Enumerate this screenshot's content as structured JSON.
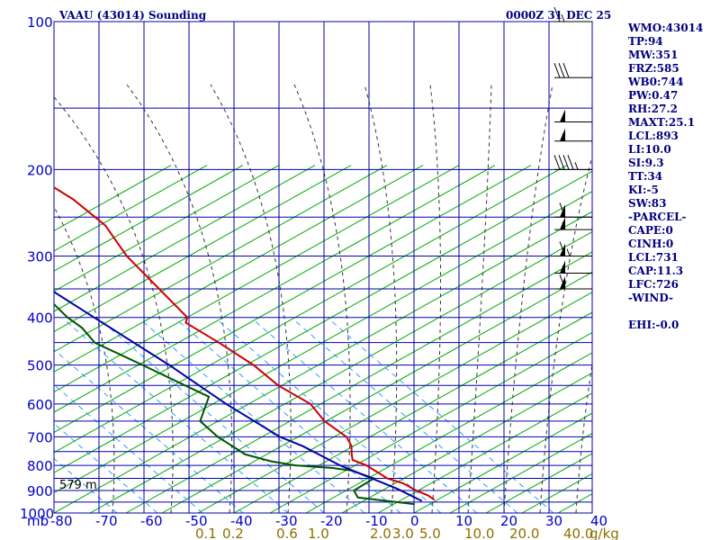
{
  "title": "VAAU (43014) Sounding",
  "time": "0000Z 31 DEC 25",
  "colors": {
    "grid": "#0000aa",
    "dry_adiabat": "#00aa00",
    "moist_adiabat": "#333333",
    "mixing_ratio": "#3399ff",
    "temperature": "#cc0000",
    "dewpoint": "#005500",
    "parcel": "#0000aa",
    "wind_barbs": "#000000"
  },
  "indices": [
    "WMO:43014",
    "TP:94",
    "MW:351",
    "FRZ:585",
    "WB0:744",
    "PW:0.47",
    "RH:27.2",
    "MAXT:25.1",
    "LCL:893",
    "LI:10.0",
    "SI:9.3",
    "TT:34",
    "KI:-5",
    "SW:83",
    "-PARCEL-",
    "CAPE:0",
    "CINH:0",
    "LCL:731",
    "CAP:11.3",
    "LFC:726",
    "-WIND-",
    "",
    "EHI:-0.0"
  ],
  "elevation_label": "579 m",
  "x_unit_label": "mb",
  "mixing_unit_label": "g/kg",
  "chart_data": {
    "type": "line",
    "chart_kind": "skew-T log-P",
    "title": "VAAU (43014) Sounding",
    "subtitle": "0000Z 31 DEC 25",
    "xlabel": "mb",
    "pressure_ticks": [
      "100",
      "200",
      "300",
      "400",
      "500",
      "600",
      "700",
      "800",
      "900",
      "1000"
    ],
    "pressure_lines": [
      100,
      150,
      200,
      250,
      300,
      350,
      400,
      450,
      500,
      550,
      600,
      650,
      700,
      750,
      800,
      850,
      900,
      950,
      1000
    ],
    "temperature_ticks": [
      "-80",
      "-70",
      "-60",
      "-50",
      "-40",
      "-30",
      "-20",
      "-10",
      "0",
      "10",
      "20",
      "30",
      "40"
    ],
    "mixing_ratio_ticks": [
      "0.1",
      "0.2",
      "0.6",
      "1.0",
      "2.0",
      "3.0",
      "5.0",
      "10.0",
      "20.0",
      "40.0"
    ],
    "grid": true,
    "series": [
      {
        "name": "Temperature",
        "points": [
          [
            100,
            -78
          ],
          [
            115,
            -70
          ],
          [
            150,
            -55
          ],
          [
            200,
            -44
          ],
          [
            230,
            -37
          ],
          [
            260,
            -33
          ],
          [
            300,
            -32
          ],
          [
            400,
            -26
          ],
          [
            410,
            -27
          ],
          [
            450,
            -22
          ],
          [
            500,
            -17
          ],
          [
            550,
            -14
          ],
          [
            600,
            -9
          ],
          [
            650,
            -8
          ],
          [
            700,
            -5
          ],
          [
            730,
            -5
          ],
          [
            760,
            -6
          ],
          [
            780,
            -6.5
          ],
          [
            800,
            -4
          ],
          [
            850,
            -1
          ],
          [
            870,
            2
          ],
          [
            900,
            4
          ],
          [
            920,
            6
          ],
          [
            940,
            7
          ]
        ]
      },
      {
        "name": "Dewpoint",
        "points": [
          [
            200,
            -82
          ],
          [
            250,
            -75
          ],
          [
            300,
            -64
          ],
          [
            350,
            -56
          ],
          [
            400,
            -53
          ],
          [
            420,
            -51
          ],
          [
            450,
            -50
          ],
          [
            500,
            -42
          ],
          [
            550,
            -35
          ],
          [
            580,
            -31
          ],
          [
            650,
            -36
          ],
          [
            700,
            -34
          ],
          [
            760,
            -30
          ],
          [
            785,
            -25
          ],
          [
            800,
            -20
          ],
          [
            810,
            -12
          ],
          [
            820,
            -8
          ],
          [
            850,
            -4
          ],
          [
            900,
            -10
          ],
          [
            930,
            -10
          ],
          [
            950,
            -2
          ],
          [
            960,
            2
          ]
        ]
      },
      {
        "name": "Parcel",
        "points": [
          [
            175,
            -88
          ],
          [
            300,
            -61
          ],
          [
            400,
            -47
          ],
          [
            500,
            -36
          ],
          [
            600,
            -28
          ],
          [
            700,
            -20
          ],
          [
            731,
            -16
          ],
          [
            800,
            -10
          ],
          [
            893,
            0
          ],
          [
            945,
            4
          ]
        ]
      }
    ],
    "wind_barbs": [
      {
        "pressure": 100,
        "speed_kt": 15
      },
      {
        "pressure": 130,
        "speed_kt": 30
      },
      {
        "pressure": 160,
        "speed_kt": 50
      },
      {
        "pressure": 175,
        "speed_kt": 55
      },
      {
        "pressure": 200,
        "speed_kt": 45
      },
      {
        "pressure": 250,
        "speed_kt": 60
      },
      {
        "pressure": 265,
        "speed_kt": 55
      },
      {
        "pressure": 300,
        "speed_kt": 65
      },
      {
        "pressure": 325,
        "speed_kt": 55
      },
      {
        "pressure": 350,
        "speed_kt": 60
      }
    ]
  }
}
